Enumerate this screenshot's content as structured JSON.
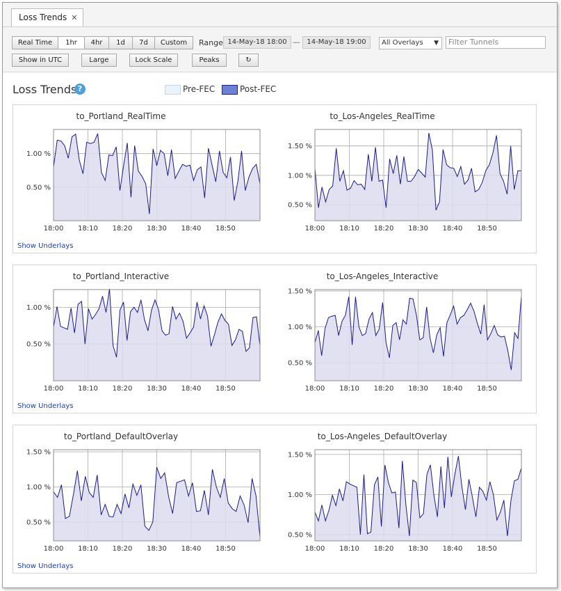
{
  "window": {
    "tab_label": "Loss Trends"
  },
  "toolbar": {
    "range_buttons": [
      "Real Time",
      "1hr",
      "4hr",
      "1d",
      "7d",
      "Custom"
    ],
    "active_range": "1hr",
    "range_label": "Range",
    "range_start": "14-May-18 18:00",
    "range_sep": "—",
    "range_end": "14-May-18 19:00",
    "overlay_select": "All Overlays",
    "filter_placeholder": "Filter Tunnels",
    "show_utc": "Show in UTC",
    "large": "Large",
    "lock_scale": "Lock Scale",
    "peaks": "Peaks",
    "refresh_icon": "refresh-icon"
  },
  "main": {
    "title": "Loss Trends",
    "help_icon": "?",
    "legend": [
      {
        "name": "Pre-FEC",
        "fill": "#eaf2fb",
        "stroke": "#c3d6ee"
      },
      {
        "name": "Post-FEC",
        "fill": "#6f7fd6",
        "stroke": "#1a2595"
      }
    ],
    "show_underlays": "Show Underlays"
  },
  "colors": {
    "series_line": "#1a1a8c",
    "series_fill": "#dcdcf0",
    "grid": "#a8a8a8"
  },
  "chart_data": [
    {
      "type": "area",
      "title": "to_Portland_RealTime",
      "x_ticks": [
        "18:00",
        "18:10",
        "18:20",
        "18:30",
        "18:40",
        "18:50"
      ],
      "y_ticks": [
        {
          "label": "0.50 %",
          "value": 0.5
        },
        {
          "label": "1.00 %",
          "value": 1.0
        }
      ],
      "ylim": [
        0.0,
        1.36
      ],
      "series": [
        {
          "values": [
            0.8,
            1.2,
            1.19,
            1.12,
            0.93,
            1.25,
            1.29,
            0.9,
            0.7,
            1.17,
            1.15,
            1.17,
            1.3,
            0.72,
            0.6,
            0.98,
            0.97,
            1.1,
            0.45,
            0.82,
            1.16,
            0.35,
            1.12,
            0.74,
            0.66,
            0.55,
            0.1,
            1.07,
            0.82,
            1.05,
            1.0,
            0.67,
            1.06,
            0.63,
            0.74,
            0.84,
            0.81,
            0.83,
            0.6,
            0.76,
            0.8,
            0.34,
            1.08,
            0.83,
            0.58,
            1.04,
            0.72,
            0.64,
            0.95,
            0.3,
            0.59,
            1.04,
            0.45,
            0.65,
            0.78,
            0.84,
            0.55
          ]
        }
      ]
    },
    {
      "type": "area",
      "title": "to_Los-Angeles_RealTime",
      "x_ticks": [
        "18:00",
        "18:10",
        "18:20",
        "18:30",
        "18:40",
        "18:50"
      ],
      "y_ticks": [
        {
          "label": "0.50 %",
          "value": 0.5
        },
        {
          "label": "1.00 %",
          "value": 1.0
        },
        {
          "label": "1.50 %",
          "value": 1.5
        }
      ],
      "ylim": [
        0.23,
        1.78
      ],
      "series": [
        {
          "values": [
            1.12,
            0.45,
            0.8,
            0.55,
            0.76,
            0.82,
            1.46,
            0.9,
            1.08,
            0.75,
            0.78,
            0.91,
            0.84,
            0.85,
            0.76,
            1.36,
            0.9,
            1.48,
            0.9,
            0.92,
            0.45,
            1.28,
            1.03,
            1.34,
            0.85,
            1.32,
            0.9,
            0.9,
            0.98,
            1.1,
            1.04,
            0.97,
            1.72,
            1.43,
            0.41,
            0.55,
            1.44,
            1.18,
            1.13,
            1.12,
            0.98,
            1.15,
            0.85,
            0.92,
            1.12,
            0.72,
            0.76,
            0.88,
            1.08,
            1.18,
            1.38,
            1.68,
            1.03,
            0.9,
            0.68,
            1.5,
            0.76,
            1.08,
            1.08
          ]
        }
      ]
    },
    {
      "type": "area",
      "title": "to_Portland_Interactive",
      "x_ticks": [
        "18:00",
        "18:10",
        "18:20",
        "18:30",
        "18:40",
        "18:50"
      ],
      "y_ticks": [
        {
          "label": "0.50 %",
          "value": 0.5
        },
        {
          "label": "1.00 %",
          "value": 1.0
        }
      ],
      "ylim": [
        0.0,
        1.24
      ],
      "series": [
        {
          "values": [
            0.73,
            1.01,
            0.74,
            0.72,
            0.7,
            0.99,
            0.65,
            1.04,
            1.08,
            0.5,
            0.98,
            0.84,
            0.9,
            0.98,
            1.15,
            0.93,
            1.25,
            0.48,
            0.32,
            0.96,
            1.07,
            0.55,
            0.94,
            1.0,
            0.93,
            1.1,
            0.83,
            0.68,
            0.96,
            1.1,
            0.97,
            0.68,
            0.62,
            0.64,
            1.01,
            0.84,
            0.92,
            0.81,
            0.58,
            0.65,
            0.73,
            1.07,
            0.84,
            1.02,
            0.88,
            0.47,
            0.63,
            0.8,
            0.91,
            0.82,
            0.77,
            0.48,
            0.56,
            0.7,
            0.67,
            0.4,
            0.45,
            0.86,
            0.87,
            0.48
          ]
        }
      ]
    },
    {
      "type": "area",
      "title": "to_Los-Angeles_Interactive",
      "x_ticks": [
        "18:00",
        "18:10",
        "18:20",
        "18:30",
        "18:40",
        "18:50"
      ],
      "y_ticks": [
        {
          "label": "0.50 %",
          "value": 0.5
        },
        {
          "label": "1.00 %",
          "value": 1.0
        },
        {
          "label": "1.50 %",
          "value": 1.5
        }
      ],
      "ylim": [
        0.25,
        1.52
      ],
      "series": [
        {
          "values": [
            0.78,
            0.95,
            0.6,
            0.98,
            1.13,
            1.15,
            1.16,
            0.88,
            1.08,
            1.16,
            1.42,
            0.75,
            1.42,
            1.0,
            0.88,
            0.91,
            1.11,
            1.2,
            0.88,
            0.97,
            1.34,
            0.79,
            0.57,
            1.02,
            1.06,
            0.82,
            1.1,
            1.04,
            1.4,
            1.39,
            1.16,
            0.82,
            0.85,
            1.28,
            0.85,
            0.64,
            0.89,
            0.99,
            0.59,
            1.06,
            1.17,
            1.29,
            1.04,
            1.13,
            1.16,
            1.24,
            1.33,
            1.22,
            1.05,
            0.9,
            1.31,
            0.82,
            0.91,
            1.02,
            0.89,
            0.86,
            0.87,
            0.67,
            0.4,
            0.92,
            0.84,
            1.43
          ]
        }
      ]
    },
    {
      "type": "area",
      "title": "to_Portland_DefaultOverlay",
      "x_ticks": [
        "18:00",
        "18:10",
        "18:20",
        "18:30",
        "18:40",
        "18:50"
      ],
      "y_ticks": [
        {
          "label": "0.50 %",
          "value": 0.5
        },
        {
          "label": "1.00 %",
          "value": 1.0
        },
        {
          "label": "1.50 %",
          "value": 1.5
        }
      ],
      "ylim": [
        0.23,
        1.53
      ],
      "series": [
        {
          "values": [
            0.93,
            0.85,
            1.03,
            0.55,
            0.58,
            0.89,
            1.23,
            0.8,
            1.15,
            0.92,
            0.85,
            1.17,
            0.6,
            0.75,
            0.58,
            0.57,
            0.75,
            0.62,
            0.9,
            0.7,
            1.04,
            0.88,
            1.03,
            0.44,
            0.38,
            0.5,
            1.28,
            1.12,
            1.2,
            0.86,
            0.62,
            1.06,
            1.08,
            1.1,
            0.87,
            1.06,
            0.65,
            0.66,
            0.95,
            0.6,
            1.25,
            1.0,
            0.85,
            1.12,
            0.77,
            0.69,
            0.65,
            0.87,
            0.74,
            0.49,
            1.12,
            0.87,
            0.28
          ]
        }
      ]
    },
    {
      "type": "area",
      "title": "to_Los-Angeles_DefaultOverlay",
      "x_ticks": [
        "18:00",
        "18:10",
        "18:20",
        "18:30",
        "18:40",
        "18:50"
      ],
      "y_ticks": [
        {
          "label": "0.50 %",
          "value": 0.5
        },
        {
          "label": "1.00 %",
          "value": 1.0
        },
        {
          "label": "1.50 %",
          "value": 1.5
        }
      ],
      "ylim": [
        0.42,
        1.56
      ],
      "series": [
        {
          "values": [
            0.78,
            0.67,
            0.87,
            0.67,
            0.8,
            0.99,
            0.86,
            1.07,
            0.92,
            1.16,
            1.13,
            1.11,
            1.09,
            0.5,
            1.25,
            0.51,
            0.53,
            1.12,
            1.22,
            0.6,
            1.37,
            1.15,
            1.02,
            1.03,
            0.58,
            1.42,
            0.87,
            0.48,
            1.18,
            1.15,
            0.71,
            0.76,
            1.25,
            1.37,
            0.99,
            0.72,
            1.35,
            0.83,
            1.47,
            0.97,
            1.26,
            1.48,
            1.1,
            0.81,
            1.19,
            0.97,
            0.72,
            1.09,
            1.04,
            0.93,
            1.16,
            1.0,
            0.68,
            0.78,
            0.93,
            0.48,
            0.92,
            1.17,
            1.19,
            1.33
          ]
        }
      ]
    }
  ]
}
